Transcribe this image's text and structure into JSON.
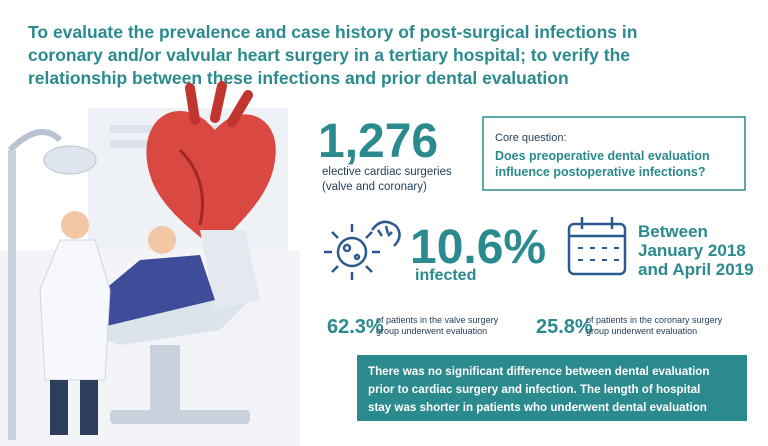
{
  "header": {
    "title": [
      "To evaluate the prevalence and case history of post-surgical infections in",
      "coronary and/or valvular heart surgery in a tertiary hospital; to verify the",
      "relationship between these infections and prior dental evaluation"
    ]
  },
  "surgeries": {
    "number": "1,276",
    "label": [
      "elective cardiac surgeries",
      "(valve and coronary)"
    ]
  },
  "core_question": {
    "heading": "Core question:",
    "text": [
      "Does preoperative dental evaluation",
      "influence postoperative infections?"
    ]
  },
  "infected": {
    "number": "10.6%",
    "label": "infected"
  },
  "period": {
    "text": [
      "Between",
      "January 2018",
      "and April 2019"
    ]
  },
  "valve": {
    "number": "62.3%",
    "text": [
      "of patients in the valve surgery",
      "group underwent evaluation"
    ]
  },
  "coronary": {
    "number": "25.8%",
    "text": [
      "of patients in the coronary surgery",
      "group underwent evaluation"
    ]
  },
  "conclusion": {
    "text": [
      "There was no significant difference between dental evaluation",
      "prior to cardiac surgery and infection. The length of hospital",
      "stay was shorter in patients who underwent dental evaluation"
    ]
  }
}
